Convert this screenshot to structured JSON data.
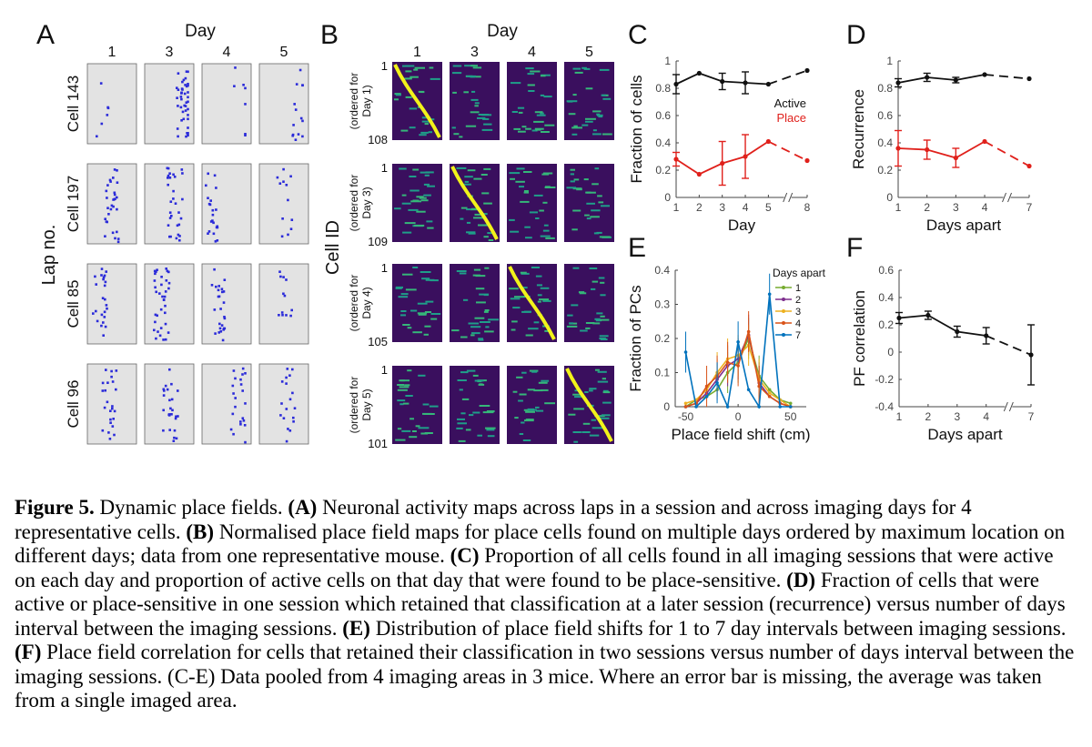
{
  "panelA": {
    "letter": "A",
    "day_title": "Day",
    "days": [
      "1",
      "3",
      "4",
      "5"
    ],
    "ylabel": "Lap no.",
    "cells": [
      "Cell 143",
      "Cell 197",
      "Cell 85",
      "Cell 96"
    ]
  },
  "panelB": {
    "letter": "B",
    "day_title": "Day",
    "days": [
      "1",
      "3",
      "4",
      "5"
    ],
    "ylabel": "Cell ID",
    "rows": [
      {
        "top": "1",
        "bottom": "108",
        "line1": "(ordered for",
        "line2": "Day 1)"
      },
      {
        "top": "1",
        "bottom": "109",
        "line1": "(ordered for",
        "line2": "Day 3)"
      },
      {
        "top": "1",
        "bottom": "105",
        "line1": "(ordered for",
        "line2": "Day 4)"
      },
      {
        "top": "1",
        "bottom": "101",
        "line1": "(ordered for",
        "line2": "Day 5)"
      }
    ]
  },
  "chart_data": [
    {
      "panel": "C",
      "type": "line",
      "xlabel": "Day",
      "ylabel": "Fraction of cells",
      "xticks": [
        "1",
        "2",
        "3",
        "4",
        "5",
        "8"
      ],
      "yticks": [
        "0",
        "0.2",
        "0.4",
        "0.6",
        "0.8",
        "1"
      ],
      "ylim": [
        0,
        1
      ],
      "axis_break": true,
      "series": [
        {
          "name": "Active",
          "color": "#111111",
          "points": [
            {
              "x": "1",
              "y": 0.83,
              "err": 0.07
            },
            {
              "x": "2",
              "y": 0.91
            },
            {
              "x": "3",
              "y": 0.85,
              "err": 0.06
            },
            {
              "x": "4",
              "y": 0.84,
              "err": 0.08
            },
            {
              "x": "5",
              "y": 0.83
            },
            {
              "x": "8",
              "y": 0.93
            }
          ]
        },
        {
          "name": "Place",
          "color": "#e0201b",
          "points": [
            {
              "x": "1",
              "y": 0.28,
              "err": 0.05
            },
            {
              "x": "2",
              "y": 0.17
            },
            {
              "x": "3",
              "y": 0.25,
              "err": 0.16
            },
            {
              "x": "4",
              "y": 0.3,
              "err": 0.16
            },
            {
              "x": "5",
              "y": 0.41
            },
            {
              "x": "8",
              "y": 0.27
            }
          ]
        }
      ],
      "legend": [
        "Active",
        "Place"
      ],
      "legend_position": "center-right"
    },
    {
      "panel": "D",
      "type": "line",
      "xlabel": "Days apart",
      "ylabel": "Recurrence",
      "xticks": [
        "1",
        "2",
        "3",
        "4",
        "7"
      ],
      "yticks": [
        "0",
        "0.2",
        "0.4",
        "0.6",
        "0.8",
        "1"
      ],
      "ylim": [
        0,
        1
      ],
      "axis_break": true,
      "series": [
        {
          "color": "#111111",
          "points": [
            {
              "x": "1",
              "y": 0.84,
              "err": 0.03
            },
            {
              "x": "2",
              "y": 0.88,
              "err": 0.03
            },
            {
              "x": "3",
              "y": 0.86,
              "err": 0.02
            },
            {
              "x": "4",
              "y": 0.9
            },
            {
              "x": "7",
              "y": 0.87
            }
          ]
        },
        {
          "color": "#e0201b",
          "points": [
            {
              "x": "1",
              "y": 0.36,
              "err": 0.13
            },
            {
              "x": "2",
              "y": 0.35,
              "err": 0.07
            },
            {
              "x": "3",
              "y": 0.29,
              "err": 0.07
            },
            {
              "x": "4",
              "y": 0.41
            },
            {
              "x": "7",
              "y": 0.23
            }
          ]
        }
      ]
    },
    {
      "panel": "E",
      "type": "line",
      "xlabel": "Place field shift (cm)",
      "ylabel": "Fraction of PCs",
      "xticks": [
        "-50",
        "0",
        "50"
      ],
      "yticks": [
        "0",
        "0.1",
        "0.2",
        "0.3",
        "0.4"
      ],
      "xlim": [
        -60,
        65
      ],
      "ylim": [
        0,
        0.4
      ],
      "legend_title": "Days apart",
      "legend_position": "top-right",
      "x": [
        -50,
        -40,
        -30,
        -20,
        -10,
        0,
        10,
        20,
        30,
        40,
        50
      ],
      "series": [
        {
          "name": "1",
          "color": "#77ac30",
          "values": [
            0.0,
            0.02,
            0.03,
            0.05,
            0.1,
            0.13,
            0.2,
            0.09,
            0.05,
            0.02,
            0.01
          ]
        },
        {
          "name": "2",
          "color": "#7e2f8e",
          "values": [
            0.0,
            0.01,
            0.04,
            0.08,
            0.12,
            0.14,
            0.21,
            0.07,
            0.03,
            0.01,
            0.0
          ]
        },
        {
          "name": "3",
          "color": "#edb120",
          "values": [
            0.01,
            0.02,
            0.05,
            0.1,
            0.14,
            0.15,
            0.18,
            0.08,
            0.04,
            0.02,
            0.0
          ]
        },
        {
          "name": "4",
          "color": "#d95319",
          "values": [
            0.0,
            0.01,
            0.06,
            0.09,
            0.13,
            0.12,
            0.22,
            0.06,
            0.03,
            0.01,
            0.0
          ]
        },
        {
          "name": "7",
          "color": "#0072bd",
          "values": [
            0.16,
            0.0,
            0.03,
            0.07,
            0.0,
            0.19,
            0.05,
            0.0,
            0.33,
            0.0,
            0.0
          ]
        }
      ]
    },
    {
      "panel": "F",
      "type": "line",
      "xlabel": "Days apart",
      "ylabel": "PF correlation",
      "xticks": [
        "1",
        "2",
        "3",
        "4",
        "7"
      ],
      "yticks": [
        "-0.4",
        "-0.2",
        "0",
        "0.2",
        "0.4",
        "0.6"
      ],
      "ylim": [
        -0.4,
        0.6
      ],
      "axis_break": true,
      "series": [
        {
          "color": "#111111",
          "points": [
            {
              "x": "1",
              "y": 0.25,
              "err": 0.04
            },
            {
              "x": "2",
              "y": 0.27,
              "err": 0.03
            },
            {
              "x": "3",
              "y": 0.15,
              "err": 0.04
            },
            {
              "x": "4",
              "y": 0.12,
              "err": 0.06
            },
            {
              "x": "7",
              "y": -0.02,
              "err": 0.22
            }
          ]
        }
      ]
    }
  ],
  "letters": {
    "C": "C",
    "D": "D",
    "E": "E",
    "F": "F"
  },
  "caption": {
    "fig_label": "Figure 5.",
    "title": " Dynamic place fields. ",
    "items": [
      {
        "label": "(A)",
        "text": " Neuronal activity maps across laps in a session and across imaging days for 4 representative cells. "
      },
      {
        "label": "(B)",
        "text": " Normalised place field maps for place cells found on multiple days ordered by maximum location on different days; data from one representative mouse. "
      },
      {
        "label": "(C)",
        "text": " Proportion of all cells found in all imaging sessions that were active on each day and proportion of active cells on that day that were found to be place-sensitive. "
      },
      {
        "label": "(D)",
        "text": " Fraction of cells that were active or place-sensitive in one session which retained that classification at a later session (recurrence) versus number of days interval between the imaging sessions. "
      },
      {
        "label": "(E)",
        "text": " Distribution of place field shifts for 1 to 7 day intervals between imaging sessions. "
      },
      {
        "label": "(F)",
        "text": " Place field correlation for cells that retained their classification in two sessions versus number of days interval between the imaging sessions. (C-E) Data pooled from 4 imaging areas in 3 mice. Where an error bar is missing, the average was taken from a single imaged area."
      }
    ]
  },
  "colors": {
    "active": "#111111",
    "place": "#e0201b",
    "raster_bg": "#e3e3e3",
    "raster_dot": "#2b2bd9",
    "heat_low": "#3a0f5e",
    "heat_high": "#f2f21a"
  }
}
